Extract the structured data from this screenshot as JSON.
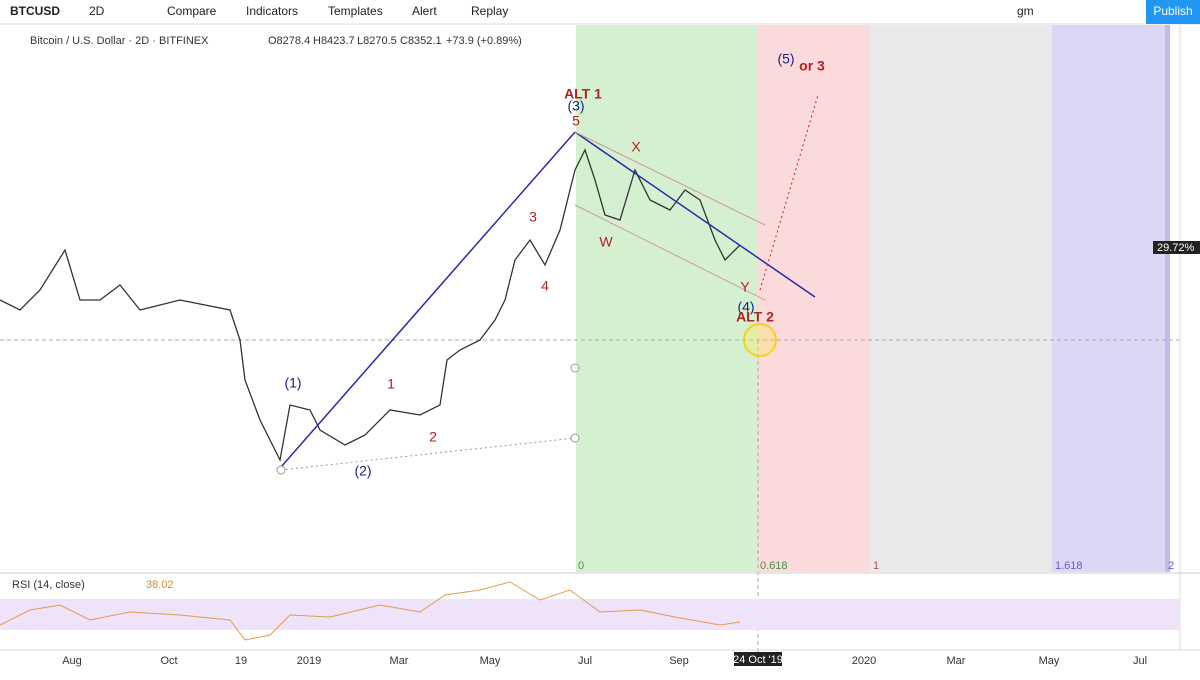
{
  "toolbar": {
    "symbol": "BTCUSD",
    "interval": "2D",
    "buttons": [
      "Compare",
      "Indicators",
      "Templates",
      "Alert",
      "Replay"
    ],
    "layout": "gm",
    "publish": "Publish"
  },
  "legend": {
    "title": "Bitcoin / U.S. Dollar · 2D · BITFINEX",
    "open": "O8278.4",
    "high": "H8423.7",
    "low": "L8270.5",
    "close": "C8352.1",
    "change": "+73.9 (+0.89%)"
  },
  "annotations": {
    "alt1": "ALT  1",
    "wave3": "(3)",
    "w5": "5",
    "x": "X",
    "w": "W",
    "y": "Y",
    "wave4": "(4)",
    "alt2": "ALT 2",
    "wave5": "(5)",
    "or3": "or  3",
    "wave1": "(1)",
    "w1": "1",
    "w2": "2",
    "wave2": "(2)",
    "w3": "3",
    "w4": "4"
  },
  "fib_labels": [
    "0",
    "0.618",
    "1",
    "1.618",
    "2"
  ],
  "price_label": "29.72%",
  "rsi": {
    "title": "RSI (14, close)",
    "value": "38.02"
  },
  "time_axis": [
    "Aug",
    "Oct",
    "19",
    "2019",
    "Mar",
    "May",
    "Jul",
    "Sep",
    "24 Oct '19",
    "2020",
    "Mar",
    "May",
    "Jul"
  ]
}
